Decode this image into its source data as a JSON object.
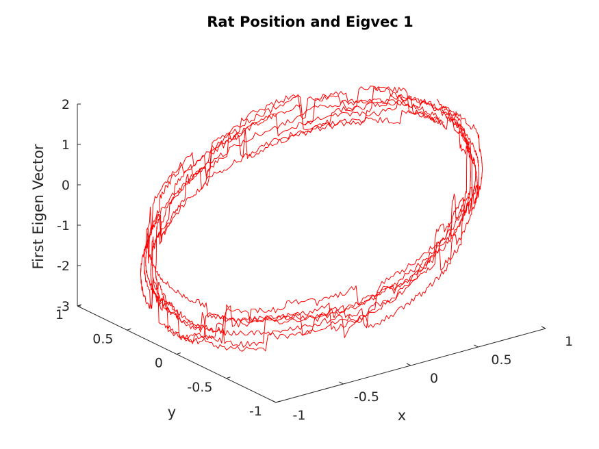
{
  "chart_data": {
    "type": "line3d",
    "title": "Rat Position and  Eigvec 1",
    "xlabel": "x",
    "ylabel": "y",
    "zlabel": "First Eigen Vector",
    "xlim": [
      -1,
      1
    ],
    "ylim": [
      -1,
      1
    ],
    "zlim": [
      -3,
      2
    ],
    "xticks": [
      {
        "value": -1,
        "label": "-1"
      },
      {
        "value": -0.5,
        "label": "-0.5"
      },
      {
        "value": 0,
        "label": "0"
      },
      {
        "value": 0.5,
        "label": "0.5"
      },
      {
        "value": 1,
        "label": "1"
      }
    ],
    "yticks": [
      {
        "value": -1,
        "label": "-1"
      },
      {
        "value": -0.5,
        "label": "-0.5"
      },
      {
        "value": 0,
        "label": "0"
      },
      {
        "value": 0.5,
        "label": "0.5"
      },
      {
        "value": 1,
        "label": "1"
      }
    ],
    "zticks": [
      {
        "value": -3,
        "label": "-3"
      },
      {
        "value": -2,
        "label": "-2"
      },
      {
        "value": -1,
        "label": "-1"
      },
      {
        "value": 0,
        "label": "0"
      },
      {
        "value": 1,
        "label": "1"
      },
      {
        "value": 2,
        "label": "2"
      }
    ],
    "grid": false,
    "series": [
      {
        "color": "#ff0000",
        "laps": [
          {
            "offset": 0.0,
            "amp": 0.95,
            "phase": 0.0
          },
          {
            "offset": 0.12,
            "amp": 0.98,
            "phase": 0.6
          },
          {
            "offset": -0.08,
            "amp": 1.0,
            "phase": 1.3
          },
          {
            "offset": 0.2,
            "amp": 0.93,
            "phase": 2.1
          },
          {
            "offset": -0.15,
            "amp": 0.96,
            "phase": 2.8
          },
          {
            "offset": 0.05,
            "amp": 1.02,
            "phase": 3.5
          },
          {
            "offset": -0.22,
            "amp": 0.99,
            "phase": 4.2
          }
        ]
      }
    ]
  }
}
